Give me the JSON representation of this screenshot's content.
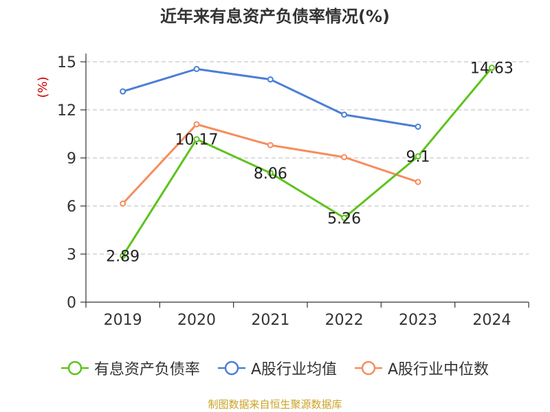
{
  "chart_data": {
    "type": "line",
    "title": "近年来有息资产负债率情况(%)",
    "xlabel": "",
    "ylabel": "(%)",
    "categories": [
      "2019",
      "2020",
      "2021",
      "2022",
      "2023",
      "2024"
    ],
    "ylim": [
      0,
      15
    ],
    "yticks": [
      0,
      3,
      6,
      9,
      12,
      15
    ],
    "grid": true,
    "legend_position": "bottom",
    "series": [
      {
        "name": "有息资产负债率",
        "color": "#5cc31c",
        "values": [
          2.89,
          10.17,
          8.06,
          5.26,
          9.1,
          14.63
        ],
        "labels": [
          "2.89",
          "10.17",
          "8.06",
          "5.26",
          "9.1",
          "14.63"
        ]
      },
      {
        "name": "A股行业均值",
        "color": "#4a7fd6",
        "values": [
          13.15,
          14.55,
          13.9,
          11.7,
          10.95,
          null
        ]
      },
      {
        "name": "A股行业中位数",
        "color": "#f78c5b",
        "values": [
          6.15,
          11.1,
          9.8,
          9.05,
          7.5,
          null
        ]
      }
    ]
  },
  "ylabel_color": "#cc0000",
  "source": {
    "text": "制图数据来自恒生聚源数据库",
    "color": "#c9a227"
  }
}
